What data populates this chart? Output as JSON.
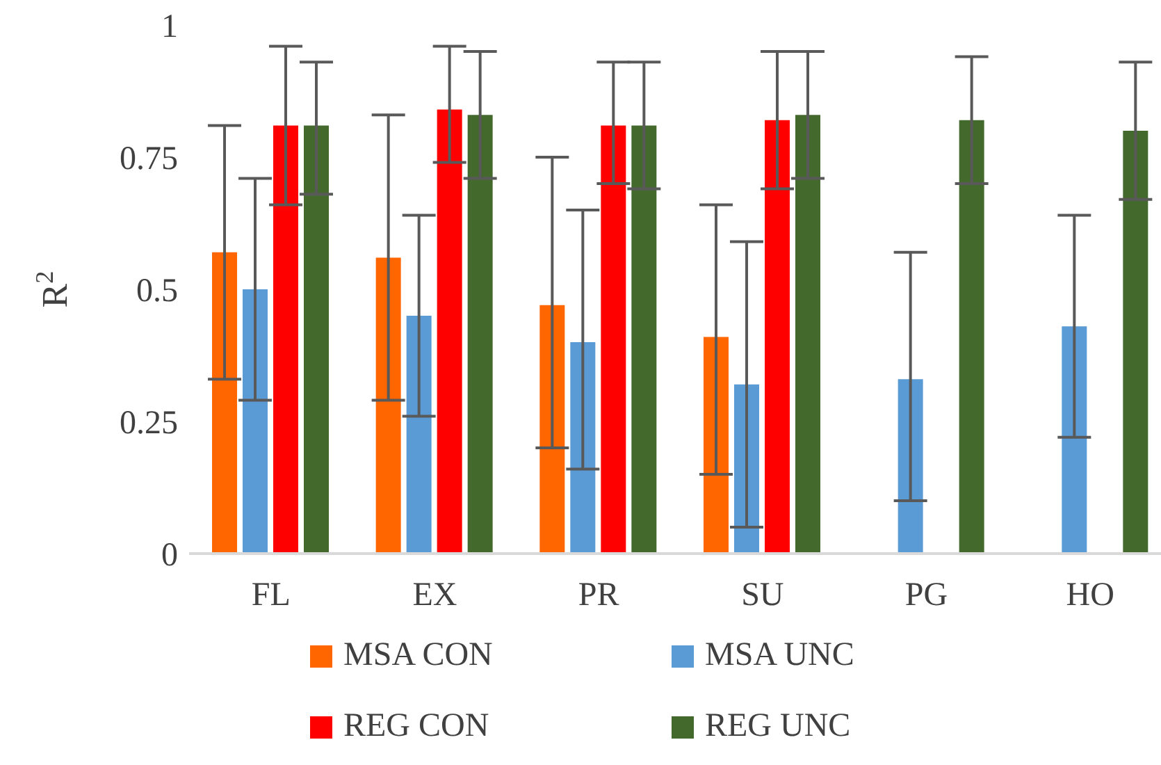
{
  "chart_data": {
    "type": "bar",
    "ylabel": "R$^{2}$",
    "categories": [
      "FL",
      "EX",
      "PR",
      "SU",
      "PG",
      "HO"
    ],
    "series": [
      {
        "name": "MSA CON",
        "color": "#ff6600",
        "values": [
          0.57,
          0.56,
          0.47,
          0.41,
          null,
          null
        ],
        "errors": [
          [
            0.33,
            0.81
          ],
          [
            0.29,
            0.83
          ],
          [
            0.2,
            0.75
          ],
          [
            0.15,
            0.66
          ],
          null,
          null
        ]
      },
      {
        "name": "MSA UNC",
        "color": "#5b9bd5",
        "values": [
          0.5,
          0.45,
          0.4,
          0.32,
          0.33,
          0.43
        ],
        "errors": [
          [
            0.29,
            0.71
          ],
          [
            0.26,
            0.64
          ],
          [
            0.16,
            0.65
          ],
          [
            0.05,
            0.59
          ],
          [
            0.1,
            0.57
          ],
          [
            0.22,
            0.64
          ]
        ]
      },
      {
        "name": "REG CON",
        "color": "#ff0000",
        "values": [
          0.81,
          0.84,
          0.81,
          0.82,
          null,
          null
        ],
        "errors": [
          [
            0.66,
            0.96
          ],
          [
            0.74,
            0.96
          ],
          [
            0.7,
            0.93
          ],
          [
            0.69,
            0.95
          ],
          null,
          null
        ]
      },
      {
        "name": "REG UNC",
        "color": "#44692c",
        "values": [
          0.81,
          0.83,
          0.81,
          0.83,
          0.82,
          0.8
        ],
        "errors": [
          [
            0.68,
            0.93
          ],
          [
            0.71,
            0.95
          ],
          [
            0.69,
            0.93
          ],
          [
            0.71,
            0.95
          ],
          [
            0.7,
            0.94
          ],
          [
            0.67,
            0.93
          ]
        ]
      }
    ],
    "ylim": [
      0,
      1
    ],
    "yticks": [
      0,
      0.25,
      0.5,
      0.75,
      1
    ],
    "grid": false,
    "legend": "bottom"
  }
}
